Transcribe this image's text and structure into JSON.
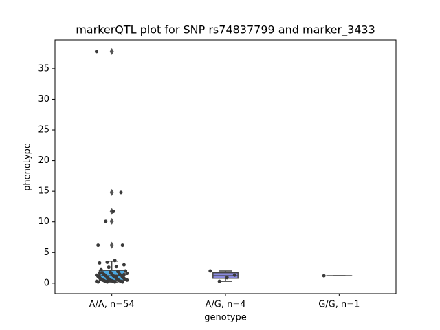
{
  "chart_data": {
    "type": "box",
    "title": "markerQTL plot for SNP rs74837799 and marker_3433",
    "x_label": "genotype",
    "y_label": "phenotype",
    "categories": [
      "A/A, n=54",
      "A/G, n=4",
      "G/G, n=1"
    ],
    "ylim": [
      -1.7,
      39.7
    ],
    "yticks": [
      0,
      5,
      10,
      15,
      20,
      25,
      30,
      35
    ],
    "boxes": [
      {
        "whislo": 0.2,
        "q1": 0.45,
        "med": 1.2,
        "q3": 2.1,
        "whishi": 3.6,
        "fliers": [
          37.8,
          14.8,
          11.7,
          10.1,
          6.2
        ],
        "color": "#4ba9e2"
      },
      {
        "whislo": 0.3,
        "q1": 0.8,
        "med": 1.2,
        "q3": 1.7,
        "whishi": 2.0,
        "fliers": [],
        "color": "#8a8ade"
      },
      {
        "whislo": 1.2,
        "q1": 1.2,
        "med": 1.2,
        "q3": 1.2,
        "whishi": 1.2,
        "fliers": [],
        "color": "#e58ad6"
      }
    ],
    "points": [
      [
        37.8,
        14.8,
        11.7,
        10.1,
        6.2,
        6.2,
        3.7,
        3.4,
        3.3,
        3.0,
        2.7,
        2.6,
        2.2,
        2.0,
        1.9,
        1.8,
        1.7,
        1.6,
        1.5,
        1.5,
        1.4,
        1.3,
        1.3,
        1.2,
        1.2,
        1.1,
        1.0,
        1.0,
        0.9,
        0.9,
        0.8,
        0.8,
        0.7,
        0.7,
        0.6,
        0.6,
        0.5,
        0.5,
        0.5,
        0.4,
        0.4,
        0.4,
        0.3,
        0.3,
        0.3,
        0.3,
        0.2,
        0.2,
        0.2,
        0.2,
        1.6,
        1.4,
        1.1,
        0.6
      ],
      [
        2.0,
        1.3,
        0.9,
        0.3
      ],
      [
        1.2
      ]
    ],
    "point_color": "#3a3a3a"
  }
}
